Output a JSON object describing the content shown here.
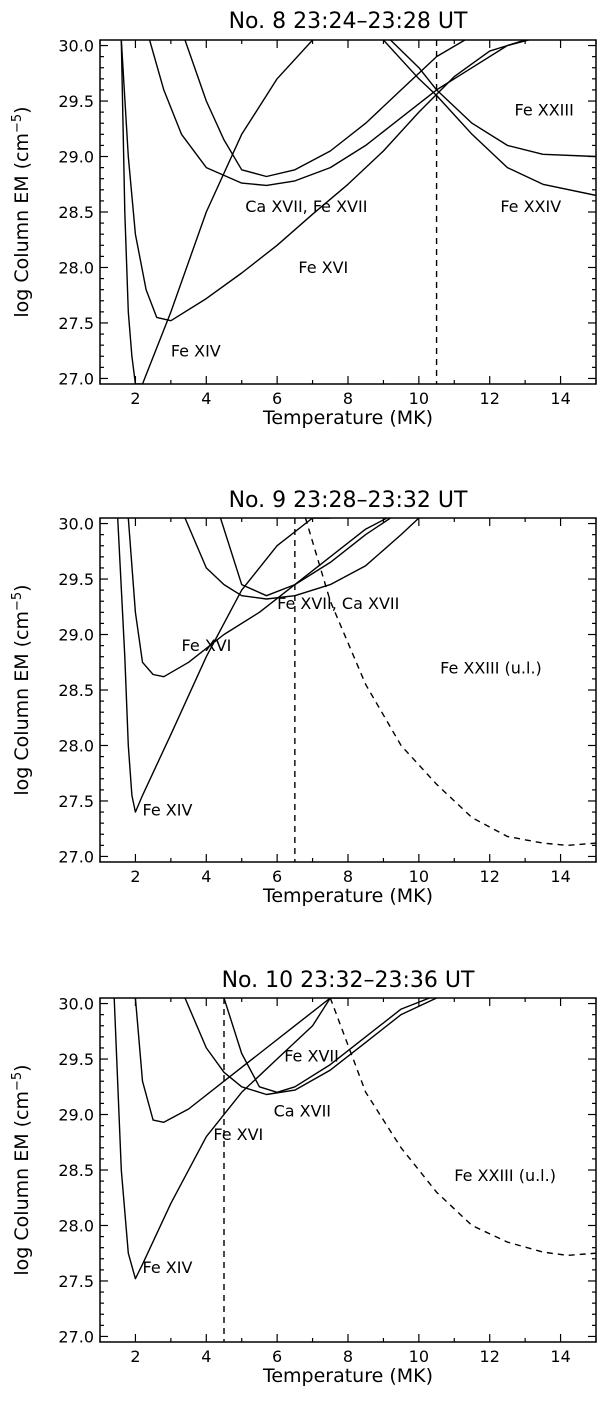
{
  "chart_data": [
    {
      "type": "line",
      "title": "No. 8  23:24–23:28 UT",
      "xlabel": "Temperature (MK)",
      "ylabel_main": "log Column EM (cm",
      "ylabel_sup": "−5",
      "ylabel_close": ")",
      "xlim": [
        1,
        15
      ],
      "ylim": [
        26.95,
        30.05
      ],
      "xticks": [
        2,
        4,
        6,
        8,
        10,
        12,
        14
      ],
      "yticks": [
        27.0,
        27.5,
        28.0,
        28.5,
        29.0,
        29.5,
        30.0
      ],
      "xtick_labels": [
        "2",
        "4",
        "6",
        "8",
        "10",
        "12",
        "14"
      ],
      "ytick_labels": [
        "27.0",
        "27.5",
        "28.0",
        "28.5",
        "29.0",
        "29.5",
        "30.0"
      ],
      "vline": 10.5,
      "series": [
        {
          "x": [
            1.6,
            1.7,
            1.8,
            1.9,
            2.0,
            2.2
          ],
          "y": [
            30.05,
            28.5,
            27.6,
            27.2,
            26.95,
            26.95
          ],
          "dashed": false
        },
        {
          "x": [
            2.2,
            3.0,
            4.0,
            5.0,
            6.0,
            7.0
          ],
          "y": [
            26.95,
            27.6,
            28.5,
            29.2,
            29.7,
            30.05
          ],
          "dashed": false
        },
        {
          "x": [
            1.6,
            1.8,
            2.0,
            2.3,
            2.6,
            3.0,
            4.0,
            5.0,
            6.0,
            7.0,
            8.0,
            9.0,
            10.0,
            11.0,
            12.0,
            13.0
          ],
          "y": [
            30.05,
            29.0,
            28.3,
            27.8,
            27.55,
            27.52,
            27.72,
            27.95,
            28.2,
            28.48,
            28.75,
            29.05,
            29.4,
            29.72,
            29.95,
            30.05
          ],
          "dashed": false
        },
        {
          "x": [
            2.4,
            2.8,
            3.3,
            4.0,
            5.0,
            5.7,
            6.5,
            7.5,
            8.5,
            9.5,
            10.5,
            11.5,
            12.5,
            13.1
          ],
          "y": [
            30.05,
            29.6,
            29.2,
            28.9,
            28.76,
            28.74,
            28.78,
            28.9,
            29.1,
            29.35,
            29.6,
            29.8,
            30.0,
            30.05
          ],
          "dashed": false
        },
        {
          "x": [
            3.4,
            4.0,
            4.5,
            5.0,
            5.7,
            6.5,
            7.5,
            8.5,
            9.5,
            10.5,
            11.3
          ],
          "y": [
            30.05,
            29.5,
            29.15,
            28.88,
            28.82,
            28.88,
            29.05,
            29.3,
            29.6,
            29.9,
            30.05
          ],
          "dashed": false
        },
        {
          "x": [
            9.2,
            10.0,
            10.5,
            11.5,
            12.5,
            13.5,
            15.0
          ],
          "y": [
            30.05,
            29.8,
            29.6,
            29.3,
            29.1,
            29.02,
            29.0
          ],
          "dashed": false
        },
        {
          "x": [
            9.0,
            10.0,
            10.5,
            11.5,
            12.5,
            13.5,
            15.0
          ],
          "y": [
            30.05,
            29.7,
            29.55,
            29.2,
            28.9,
            28.75,
            28.65
          ],
          "dashed": false
        }
      ],
      "annotations": [
        {
          "text": "Fe XXIII",
          "x": 12.7,
          "y": 29.37
        },
        {
          "text": "Ca XVII, Fe XVII",
          "x": 5.1,
          "y": 28.5
        },
        {
          "text": "Fe XXIV",
          "x": 12.3,
          "y": 28.5
        },
        {
          "text": "Fe XVI",
          "x": 6.6,
          "y": 27.95
        },
        {
          "text": "Fe XIV",
          "x": 3.0,
          "y": 27.2
        }
      ]
    },
    {
      "type": "line",
      "title": "No. 9  23:28–23:32 UT",
      "xlabel": "Temperature (MK)",
      "ylabel_main": "log Column EM (cm",
      "ylabel_sup": "−5",
      "ylabel_close": ")",
      "xlim": [
        1,
        15
      ],
      "ylim": [
        26.95,
        30.05
      ],
      "xticks": [
        2,
        4,
        6,
        8,
        10,
        12,
        14
      ],
      "yticks": [
        27.0,
        27.5,
        28.0,
        28.5,
        29.0,
        29.5,
        30.0
      ],
      "xtick_labels": [
        "2",
        "4",
        "6",
        "8",
        "10",
        "12",
        "14"
      ],
      "ytick_labels": [
        "27.0",
        "27.5",
        "28.0",
        "28.5",
        "29.0",
        "29.5",
        "30.0"
      ],
      "vline": 6.5,
      "series": [
        {
          "x": [
            1.5,
            1.7,
            1.8,
            1.9,
            2.0,
            2.2,
            3.0,
            4.0,
            5.0,
            6.0,
            7.0,
            7.5
          ],
          "y": [
            30.05,
            28.8,
            28.0,
            27.55,
            27.4,
            27.55,
            28.1,
            28.8,
            29.4,
            29.8,
            30.05,
            30.05
          ],
          "dashed": false
        },
        {
          "x": [
            1.8,
            2.0,
            2.2,
            2.5,
            2.8,
            3.5,
            4.5,
            5.5,
            6.5,
            7.5,
            8.5,
            9.1
          ],
          "y": [
            30.05,
            29.2,
            28.75,
            28.64,
            28.62,
            28.75,
            29.0,
            29.2,
            29.45,
            29.7,
            29.95,
            30.05
          ],
          "dashed": false
        },
        {
          "x": [
            3.4,
            4.0,
            4.5,
            5.0,
            5.7,
            6.5,
            7.5,
            8.5,
            9.5,
            10.0
          ],
          "y": [
            30.05,
            29.6,
            29.45,
            29.35,
            29.32,
            29.35,
            29.45,
            29.62,
            29.9,
            30.05
          ],
          "dashed": false
        },
        {
          "x": [
            4.4,
            5.0,
            5.7,
            6.5,
            7.5,
            8.5,
            9.2
          ],
          "y": [
            30.05,
            29.45,
            29.35,
            29.45,
            29.65,
            29.9,
            30.05
          ],
          "dashed": false
        },
        {
          "x": [
            6.8,
            7.5,
            8.5,
            9.5,
            10.5,
            11.5,
            12.5,
            13.5,
            14.2,
            15.0
          ],
          "y": [
            30.05,
            29.3,
            28.55,
            28.0,
            27.65,
            27.35,
            27.18,
            27.12,
            27.1,
            27.12
          ],
          "dashed": true
        }
      ],
      "annotations": [
        {
          "text": "Fe XVII, Ca XVII",
          "x": 6.0,
          "y": 29.23
        },
        {
          "text": "Fe XVI",
          "x": 3.3,
          "y": 28.85
        },
        {
          "text": "Fe XXIII (u.l.)",
          "x": 10.6,
          "y": 28.65
        },
        {
          "text": "Fe XIV",
          "x": 2.2,
          "y": 27.37
        }
      ]
    },
    {
      "type": "line",
      "title": "No. 10  23:32–23:36 UT",
      "xlabel": "Temperature (MK)",
      "ylabel_main": "log Column EM (cm",
      "ylabel_sup": "−5",
      "ylabel_close": ")",
      "xlim": [
        1,
        15
      ],
      "ylim": [
        26.95,
        30.05
      ],
      "xticks": [
        2,
        4,
        6,
        8,
        10,
        12,
        14
      ],
      "yticks": [
        27.0,
        27.5,
        28.0,
        28.5,
        29.0,
        29.5,
        30.0
      ],
      "xtick_labels": [
        "2",
        "4",
        "6",
        "8",
        "10",
        "12",
        "14"
      ],
      "ytick_labels": [
        "27.0",
        "27.5",
        "28.0",
        "28.5",
        "29.0",
        "29.5",
        "30.0"
      ],
      "vline": 4.5,
      "series": [
        {
          "x": [
            1.4,
            1.6,
            1.8,
            2.0,
            2.2,
            3.0,
            4.0,
            5.0,
            6.0,
            7.0,
            7.5,
            8.0
          ],
          "y": [
            30.05,
            28.5,
            27.75,
            27.52,
            27.65,
            28.2,
            28.8,
            29.2,
            29.5,
            29.8,
            30.05,
            30.05
          ],
          "dashed": false
        },
        {
          "x": [
            2.0,
            2.2,
            2.5,
            2.8,
            3.5,
            4.5,
            5.5,
            6.5,
            7.5
          ],
          "y": [
            30.05,
            29.3,
            28.95,
            28.93,
            29.05,
            29.3,
            29.55,
            29.8,
            30.05
          ],
          "dashed": false
        },
        {
          "x": [
            3.4,
            4.0,
            4.5,
            5.0,
            5.7,
            6.5,
            7.5,
            8.5,
            9.5,
            10.5
          ],
          "y": [
            30.05,
            29.6,
            29.38,
            29.25,
            29.18,
            29.22,
            29.4,
            29.65,
            29.9,
            30.05
          ],
          "dashed": false
        },
        {
          "x": [
            4.5,
            5.0,
            5.5,
            6.0,
            6.5,
            7.5,
            8.5,
            9.5,
            10.3
          ],
          "y": [
            30.05,
            29.55,
            29.25,
            29.2,
            29.25,
            29.45,
            29.7,
            29.95,
            30.05
          ],
          "dashed": false
        },
        {
          "x": [
            7.5,
            8.5,
            9.5,
            10.5,
            11.5,
            12.5,
            13.5,
            14.2,
            15.0
          ],
          "y": [
            30.05,
            29.2,
            28.7,
            28.3,
            28.0,
            27.85,
            27.76,
            27.73,
            27.75
          ],
          "dashed": true
        }
      ],
      "annotations": [
        {
          "text": "Fe XVII",
          "x": 6.2,
          "y": 29.48
        },
        {
          "text": "Ca XVII",
          "x": 5.9,
          "y": 28.98
        },
        {
          "text": "Fe XVI",
          "x": 4.2,
          "y": 28.77
        },
        {
          "text": "Fe XXIII (u.l.)",
          "x": 11.0,
          "y": 28.4
        },
        {
          "text": "Fe XIV",
          "x": 2.2,
          "y": 27.57
        }
      ]
    }
  ]
}
